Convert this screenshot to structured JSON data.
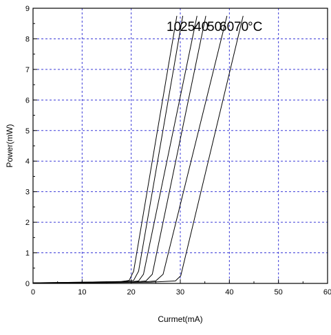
{
  "chart_data": {
    "type": "line",
    "title": "",
    "xlabel": "Curmet(mA)",
    "ylabel": "Power(mW)",
    "xlim": [
      0,
      60
    ],
    "ylim": [
      0,
      9
    ],
    "x_ticks": [
      "0",
      "10",
      "20",
      "30",
      "40",
      "50",
      "60"
    ],
    "y_ticks": [
      "0",
      "1",
      "2",
      "3",
      "4",
      "5",
      "6",
      "7",
      "8",
      "9"
    ],
    "grid": true,
    "series": [
      {
        "name": "10",
        "points": [
          [
            0,
            0.02
          ],
          [
            10,
            0.04
          ],
          [
            18,
            0.06
          ],
          [
            19.6,
            0.1
          ],
          [
            20.5,
            0.4
          ],
          [
            29.3,
            8.75
          ]
        ]
      },
      {
        "name": "25",
        "points": [
          [
            0,
            0.02
          ],
          [
            10,
            0.04
          ],
          [
            19,
            0.06
          ],
          [
            20.5,
            0.1
          ],
          [
            21.5,
            0.4
          ],
          [
            30.5,
            8.75
          ]
        ]
      },
      {
        "name": "40",
        "points": [
          [
            0,
            0.01
          ],
          [
            10,
            0.03
          ],
          [
            20,
            0.05
          ],
          [
            21.5,
            0.08
          ],
          [
            22.5,
            0.3
          ],
          [
            33.4,
            8.75
          ]
        ]
      },
      {
        "name": "50",
        "points": [
          [
            0,
            0.01
          ],
          [
            10,
            0.03
          ],
          [
            21,
            0.05
          ],
          [
            23,
            0.08
          ],
          [
            24.3,
            0.3
          ],
          [
            35.2,
            8.75
          ]
        ]
      },
      {
        "name": "60",
        "points": [
          [
            0,
            0.01
          ],
          [
            10,
            0.02
          ],
          [
            22,
            0.04
          ],
          [
            25,
            0.08
          ],
          [
            26.5,
            0.3
          ],
          [
            39.5,
            8.75
          ]
        ]
      },
      {
        "name": "70",
        "points": [
          [
            0,
            0.01
          ],
          [
            10,
            0.02
          ],
          [
            24,
            0.04
          ],
          [
            29,
            0.08
          ],
          [
            30.1,
            0.25
          ],
          [
            42.8,
            8.75
          ]
        ]
      }
    ],
    "curve_labels": [
      "10",
      "25",
      "40",
      "50",
      "60",
      "70",
      "°C"
    ]
  }
}
